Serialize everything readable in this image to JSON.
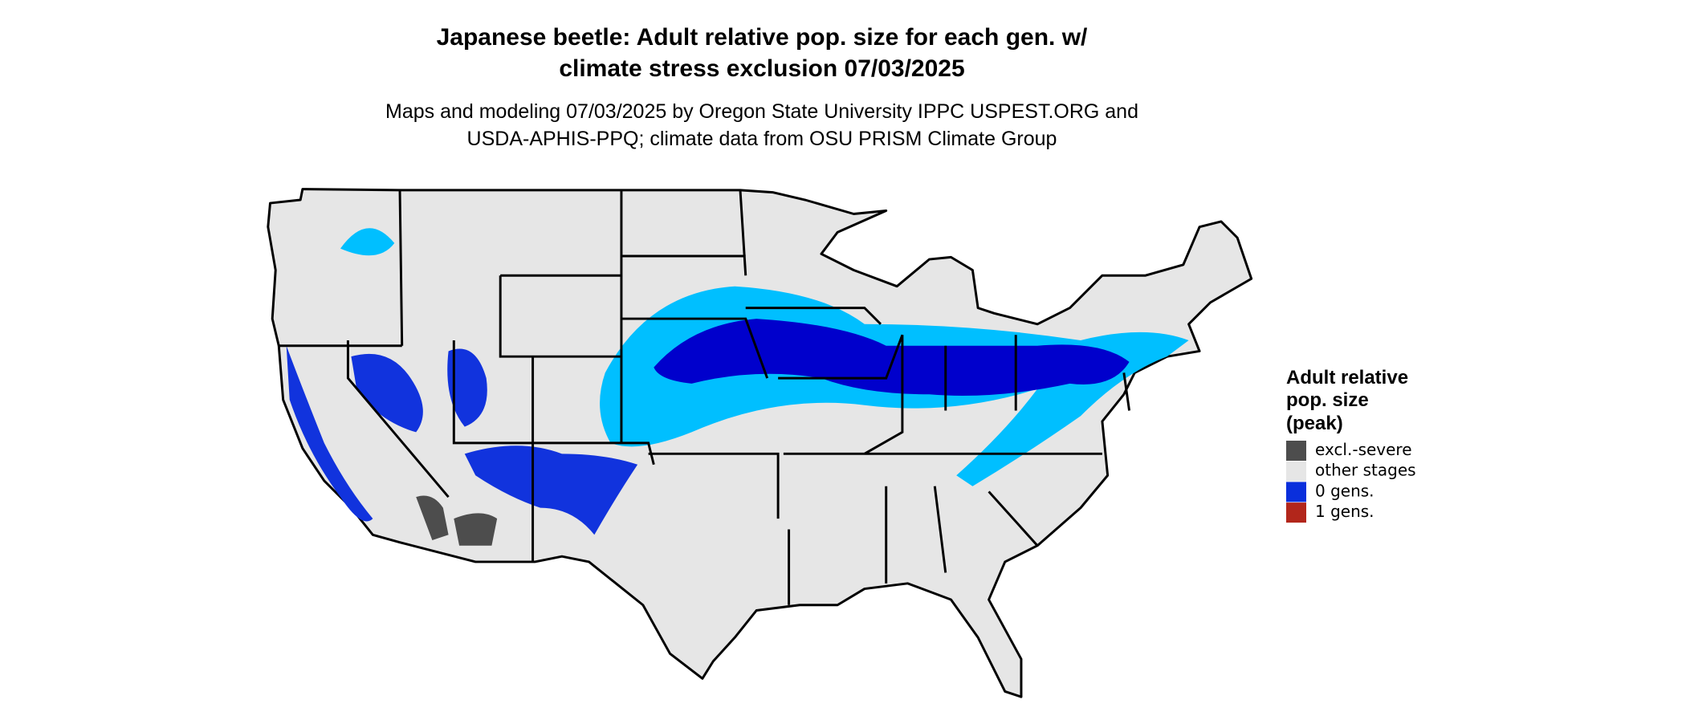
{
  "header": {
    "title_lines": [
      "Japanese beetle: Adult relative pop. size for each gen. w/",
      "climate stress exclusion 07/03/2025"
    ],
    "subtitle_lines": [
      "Maps and modeling 07/03/2025 by Oregon State University IPPC USPEST.ORG and",
      "USDA-APHIS-PPQ; climate data from OSU PRISM Climate Group"
    ]
  },
  "legend": {
    "title_lines": [
      "Adult relative",
      "pop. size",
      "(peak)"
    ],
    "items": [
      {
        "label": "excl.-severe",
        "color": "#4d4d4d"
      },
      {
        "label": "other stages",
        "color": "#e6e6e6"
      },
      {
        "label": "0 gens.",
        "color": "#0a2fdc"
      },
      {
        "label": "1 gens.",
        "color": "#b2261b"
      }
    ]
  }
}
